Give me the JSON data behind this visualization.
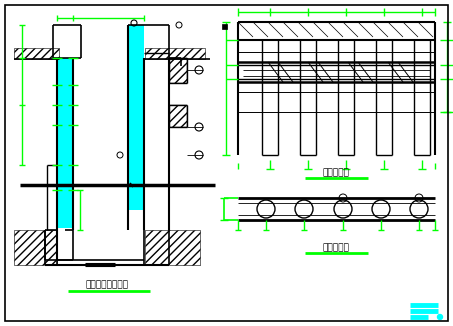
{
  "bg_color": "#ffffff",
  "black": "#000000",
  "green": "#00ff00",
  "cyan": "#00ffff",
  "title1": "护壁立面剖断构造",
  "title2": "桩板立面图",
  "title3": "桩板平面图",
  "figsize": [
    4.53,
    3.26
  ],
  "dpi": 100
}
